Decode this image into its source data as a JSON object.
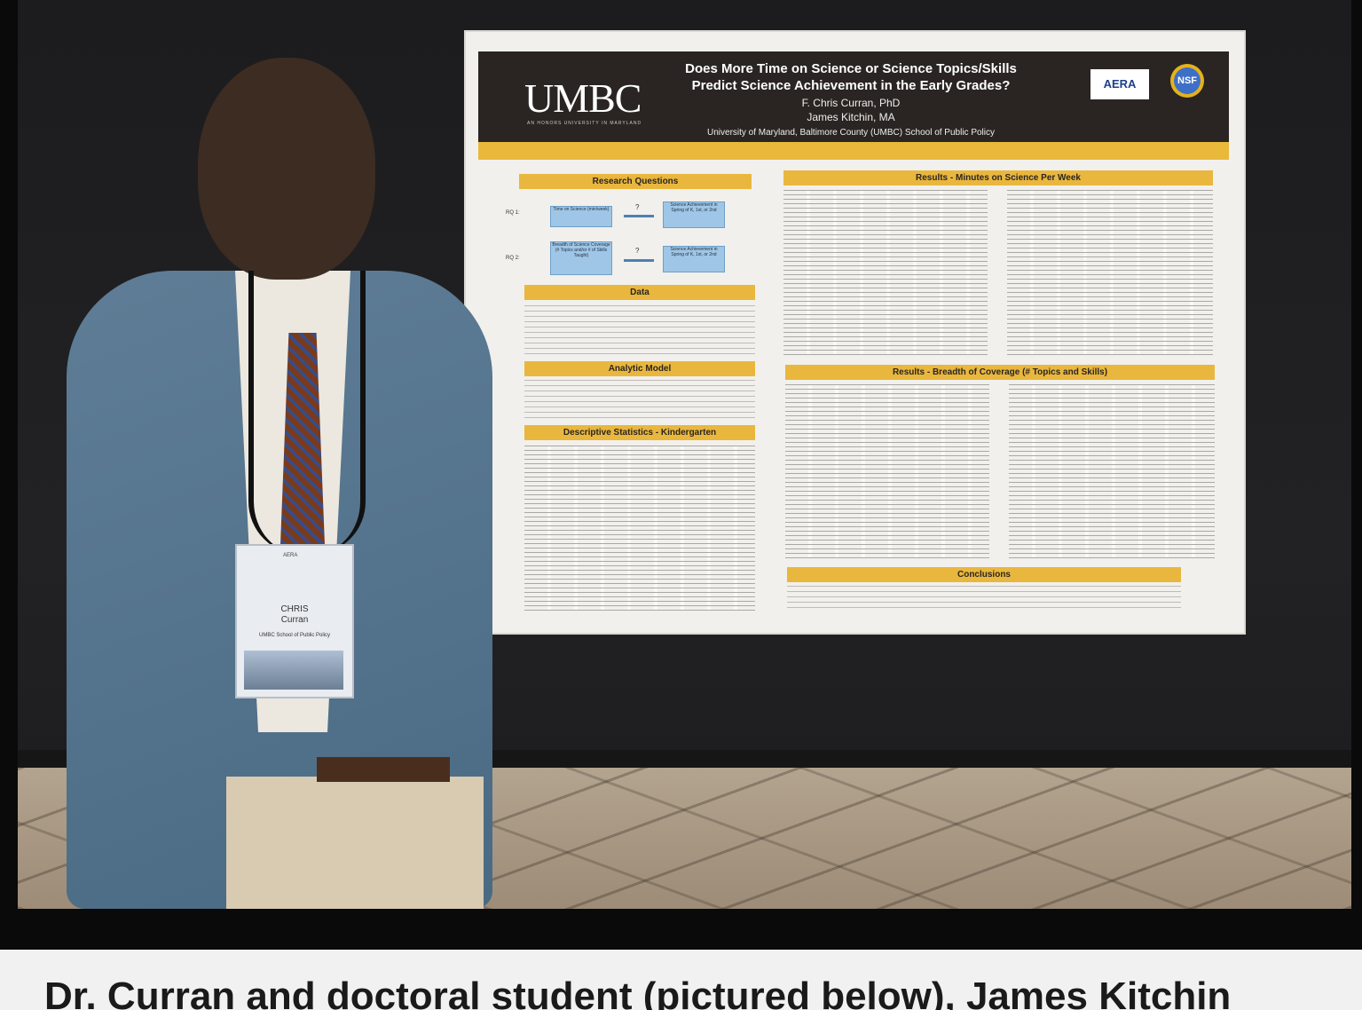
{
  "poster": {
    "logo": "UMBC",
    "logo_sub": "AN HONORS UNIVERSITY IN MARYLAND",
    "title": "Does More Time on Science or Science Topics/Skills Predict Science Achievement in the Early Grades?",
    "author1": "F. Chris Curran, PhD",
    "author2": "James Kitchin, MA",
    "affiliation": "University of Maryland, Baltimore County (UMBC) School of Public Policy",
    "aera_logo": "AERA",
    "nsf_logo": "NSF",
    "sections": {
      "research_questions": "Research Questions",
      "data": "Data",
      "analytic_model": "Analytic Model",
      "descriptive": "Descriptive Statistics - Kindergarten",
      "results_minutes": "Results - Minutes on Science Per Week",
      "results_breadth": "Results - Breadth of Coverage (# Topics and Skills)",
      "conclusions": "Conclusions"
    },
    "rq1_label": "RQ 1:",
    "rq2_label": "RQ 2:",
    "rq1_box_left": "Time on Science (min/week)",
    "rq1_box_right": "Science Achievement in Spring of K, 1st, or 2nd",
    "rq2_box_left": "Breadth of Science Coverage (# Topics and/or # of Skills Taught)",
    "rq2_box_right": "Science Achievement in Spring of K, 1st, or 2nd",
    "question_mark": "?"
  },
  "badge": {
    "org": "AERA",
    "name_first": "CHRIS",
    "name_last": "Curran",
    "affiliation": "UMBC School of Public Policy"
  },
  "caption": "Dr. Curran and doctoral student (pictured below), James Kitchin"
}
